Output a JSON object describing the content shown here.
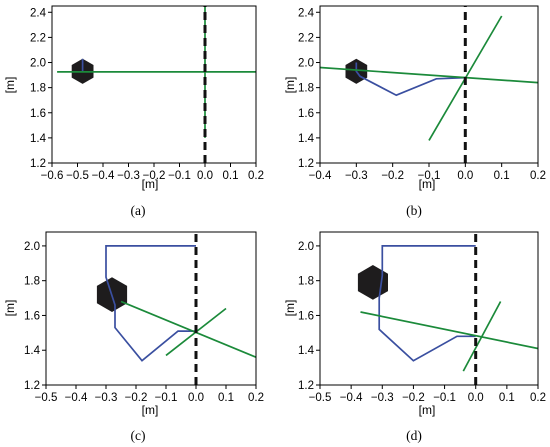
{
  "chart_data": [
    {
      "panel": "a",
      "caption": "(a)",
      "type": "line",
      "xlabel": "[m]",
      "ylabel": "[m]",
      "xlim": [
        -0.6,
        0.2
      ],
      "ylim": [
        1.2,
        2.45
      ],
      "xticks": [
        -0.6,
        -0.5,
        -0.4,
        -0.3,
        -0.2,
        -0.1,
        0.0,
        0.1,
        0.2
      ],
      "xtick_labels": [
        "−0.6",
        "−0.5",
        "−0.4",
        "−0.3",
        "−0.2",
        "−0.1",
        "0.0",
        "0.1",
        "0.2"
      ],
      "yticks": [
        1.2,
        1.4,
        1.6,
        1.8,
        2.0,
        2.2,
        2.4
      ],
      "ytick_labels": [
        "1.2",
        "1.4",
        "1.6",
        "1.8",
        "2.0",
        "2.2",
        "2.4"
      ],
      "hexagon": {
        "cx": -0.48,
        "cy": 1.93,
        "r": 0.1
      },
      "series": [
        {
          "color": "#3a4fa0",
          "style": "solid",
          "x": [
            -0.48,
            -0.48
          ],
          "y": [
            1.93,
            2.03
          ]
        },
        {
          "color": "#1b8a3a",
          "style": "solid",
          "x": [
            -0.58,
            0.2
          ],
          "y": [
            1.925,
            1.925
          ]
        },
        {
          "color": "#1b8a3a",
          "style": "solid",
          "x": [
            0.0,
            0.0
          ],
          "y": [
            1.4,
            2.45
          ]
        },
        {
          "color": "#111111",
          "style": "dashed",
          "x": [
            0.0,
            0.0
          ],
          "y": [
            1.2,
            2.45
          ]
        }
      ]
    },
    {
      "panel": "b",
      "caption": "(b)",
      "type": "line",
      "xlabel": "[m]",
      "ylabel": "[m]",
      "xlim": [
        -0.4,
        0.2
      ],
      "ylim": [
        1.2,
        2.45
      ],
      "xticks": [
        -0.4,
        -0.3,
        -0.2,
        -0.1,
        0.0,
        0.1,
        0.2
      ],
      "xtick_labels": [
        "−0.4",
        "−0.3",
        "−0.2",
        "−0.1",
        "0.0",
        "0.1",
        "0.2"
      ],
      "yticks": [
        1.2,
        1.4,
        1.6,
        1.8,
        2.0,
        2.2,
        2.4
      ],
      "ytick_labels": [
        "1.2",
        "1.4",
        "1.6",
        "1.8",
        "2.0",
        "2.2",
        "2.4"
      ],
      "hexagon": {
        "cx": -0.3,
        "cy": 1.93,
        "r": 0.1
      },
      "series": [
        {
          "color": "#3a4fa0",
          "style": "solid",
          "x": [
            -0.3,
            -0.3,
            -0.29,
            -0.19,
            -0.08,
            0.0
          ],
          "y": [
            2.0,
            1.93,
            1.89,
            1.74,
            1.87,
            1.88
          ]
        },
        {
          "color": "#1b8a3a",
          "style": "solid",
          "x": [
            -0.4,
            0.2
          ],
          "y": [
            1.96,
            1.84
          ]
        },
        {
          "color": "#1b8a3a",
          "style": "solid",
          "x": [
            -0.1,
            0.1
          ],
          "y": [
            1.38,
            2.37
          ]
        },
        {
          "color": "#111111",
          "style": "dashed",
          "x": [
            0.0,
            0.0
          ],
          "y": [
            1.2,
            2.45
          ]
        }
      ]
    },
    {
      "panel": "c",
      "caption": "(c)",
      "type": "line",
      "xlabel": "[m]",
      "ylabel": "[m]",
      "xlim": [
        -0.5,
        0.2
      ],
      "ylim": [
        1.2,
        2.08
      ],
      "xticks": [
        -0.5,
        -0.4,
        -0.3,
        -0.2,
        -0.1,
        0.0,
        0.1,
        0.2
      ],
      "xtick_labels": [
        "−0.5",
        "−0.4",
        "−0.3",
        "−0.2",
        "−0.1",
        "0.0",
        "0.1",
        "0.2"
      ],
      "yticks": [
        1.2,
        1.4,
        1.6,
        1.8,
        2.0
      ],
      "ytick_labels": [
        "1.2",
        "1.4",
        "1.6",
        "1.8",
        "2.0"
      ],
      "hexagon": {
        "cx": -0.28,
        "cy": 1.72,
        "r": 0.1
      },
      "series": [
        {
          "color": "#3a4fa0",
          "style": "solid",
          "x": [
            0.0,
            -0.3,
            -0.3,
            -0.27,
            -0.27,
            -0.18,
            -0.06,
            0.0
          ],
          "y": [
            2.0,
            2.0,
            1.82,
            1.66,
            1.53,
            1.34,
            1.51,
            1.51
          ]
        },
        {
          "color": "#1b8a3a",
          "style": "solid",
          "x": [
            -0.25,
            0.2
          ],
          "y": [
            1.68,
            1.36
          ]
        },
        {
          "color": "#1b8a3a",
          "style": "solid",
          "x": [
            -0.1,
            0.1
          ],
          "y": [
            1.37,
            1.64
          ]
        },
        {
          "color": "#111111",
          "style": "dashed",
          "x": [
            0.0,
            0.0
          ],
          "y": [
            1.2,
            2.08
          ]
        }
      ]
    },
    {
      "panel": "d",
      "caption": "(d)",
      "type": "line",
      "xlabel": "[m]",
      "ylabel": "[m]",
      "xlim": [
        -0.5,
        0.2
      ],
      "ylim": [
        1.2,
        2.08
      ],
      "xticks": [
        -0.5,
        -0.4,
        -0.3,
        -0.2,
        -0.1,
        0.0,
        0.1,
        0.2
      ],
      "xtick_labels": [
        "−0.5",
        "−0.4",
        "−0.3",
        "−0.2",
        "−0.1",
        "0.0",
        "0.1",
        "0.2"
      ],
      "yticks": [
        1.2,
        1.4,
        1.6,
        1.8,
        2.0
      ],
      "ytick_labels": [
        "1.2",
        "1.4",
        "1.6",
        "1.8",
        "2.0"
      ],
      "hexagon": {
        "cx": -0.33,
        "cy": 1.79,
        "r": 0.1
      },
      "series": [
        {
          "color": "#3a4fa0",
          "style": "solid",
          "x": [
            0.0,
            -0.3,
            -0.3,
            -0.31,
            -0.31,
            -0.2,
            -0.06,
            0.0
          ],
          "y": [
            2.0,
            2.0,
            1.83,
            1.7,
            1.52,
            1.34,
            1.48,
            1.48
          ]
        },
        {
          "color": "#1b8a3a",
          "style": "solid",
          "x": [
            -0.37,
            0.2
          ],
          "y": [
            1.62,
            1.41
          ]
        },
        {
          "color": "#1b8a3a",
          "style": "solid",
          "x": [
            -0.04,
            0.08
          ],
          "y": [
            1.28,
            1.68
          ]
        },
        {
          "color": "#111111",
          "style": "dashed",
          "x": [
            0.0,
            0.0
          ],
          "y": [
            1.2,
            2.08
          ]
        }
      ]
    }
  ]
}
